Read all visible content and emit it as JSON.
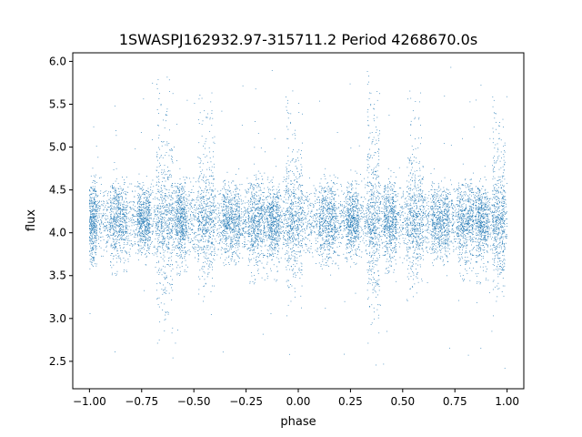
{
  "chart_data": {
    "type": "scatter",
    "title": "1SWASPJ162932.97-315711.2 Period 4268670.0s",
    "xlabel": "phase",
    "ylabel": "flux",
    "xlim": [
      -1.08,
      1.08
    ],
    "ylim": [
      2.18,
      6.1
    ],
    "x_ticks": [
      -1.0,
      -0.75,
      -0.5,
      -0.25,
      0.0,
      0.25,
      0.5,
      0.75,
      1.0
    ],
    "x_tick_labels": [
      "−1.00",
      "−0.75",
      "−0.50",
      "−0.25",
      "0.00",
      "0.25",
      "0.50",
      "0.75",
      "1.00"
    ],
    "y_ticks": [
      2.5,
      3.0,
      3.5,
      4.0,
      4.5,
      5.0,
      5.5,
      6.0
    ],
    "y_tick_labels": [
      "2.5",
      "3.0",
      "3.5",
      "4.0",
      "4.5",
      "5.0",
      "5.5",
      "6.0"
    ],
    "grid": false,
    "marker_color": "#1f77b4",
    "phase_range": [
      -1.0,
      1.0
    ],
    "baseline_flux": 4.15,
    "typical_flux_range": [
      3.6,
      4.7
    ],
    "outlier_flux_range": [
      2.4,
      5.95
    ],
    "clusters": [
      {
        "center": -0.985,
        "width": 0.04,
        "flux_low": 3.6,
        "flux_high": 4.7
      },
      {
        "center": -0.86,
        "width": 0.08,
        "flux_low": 3.5,
        "flux_high": 4.6
      },
      {
        "center": -0.74,
        "width": 0.06,
        "flux_low": 3.7,
        "flux_high": 4.6
      },
      {
        "center": -0.64,
        "width": 0.08,
        "flux_low": 3.2,
        "flux_high": 5.9
      },
      {
        "center": -0.56,
        "width": 0.05,
        "flux_low": 3.5,
        "flux_high": 4.6
      },
      {
        "center": -0.44,
        "width": 0.08,
        "flux_low": 3.6,
        "flux_high": 5.7
      },
      {
        "center": -0.32,
        "width": 0.08,
        "flux_low": 3.6,
        "flux_high": 4.6
      },
      {
        "center": -0.2,
        "width": 0.08,
        "flux_low": 3.4,
        "flux_high": 4.6
      },
      {
        "center": -0.12,
        "width": 0.06,
        "flux_low": 3.4,
        "flux_high": 4.5
      },
      {
        "center": -0.02,
        "width": 0.08,
        "flux_low": 3.5,
        "flux_high": 5.6
      },
      {
        "center": 0.14,
        "width": 0.08,
        "flux_low": 3.6,
        "flux_high": 4.7
      },
      {
        "center": 0.26,
        "width": 0.06,
        "flux_low": 3.6,
        "flux_high": 4.6
      },
      {
        "center": 0.36,
        "width": 0.06,
        "flux_low": 3.2,
        "flux_high": 5.9
      },
      {
        "center": 0.44,
        "width": 0.06,
        "flux_low": 3.5,
        "flux_high": 4.6
      },
      {
        "center": 0.56,
        "width": 0.08,
        "flux_low": 3.6,
        "flux_high": 5.7
      },
      {
        "center": 0.68,
        "width": 0.08,
        "flux_low": 3.6,
        "flux_high": 4.6
      },
      {
        "center": 0.8,
        "width": 0.08,
        "flux_low": 3.4,
        "flux_high": 4.6
      },
      {
        "center": 0.88,
        "width": 0.06,
        "flux_low": 3.4,
        "flux_high": 4.5
      },
      {
        "center": 0.96,
        "width": 0.06,
        "flux_low": 3.5,
        "flux_high": 5.6
      }
    ]
  }
}
